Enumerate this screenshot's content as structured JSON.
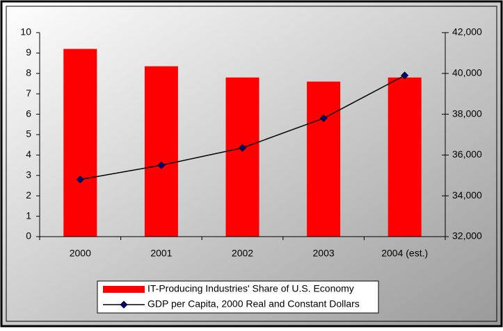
{
  "chart_data": {
    "type": "bar-line",
    "categories": [
      "2000",
      "2001",
      "2002",
      "2003",
      "2004 (est.)"
    ],
    "series": [
      {
        "name": "IT-Producing Industries' Share of U.S. Economy",
        "type": "bar",
        "color": "#ff0000",
        "values": [
          9.2,
          8.35,
          7.8,
          7.6,
          7.8
        ]
      },
      {
        "name": "GDP per Capita, 2000 Real and Constant Dollars",
        "type": "line",
        "axis": "y2",
        "color": "#000000",
        "marker_color": "#000080",
        "values": [
          34800,
          35500,
          36350,
          37800,
          39900
        ]
      }
    ],
    "ylim": [
      0,
      10
    ],
    "yticks": [
      0,
      1,
      2,
      3,
      4,
      5,
      6,
      7,
      8,
      9,
      10
    ],
    "y2lim": [
      32000,
      42000
    ],
    "y2ticks": [
      {
        "value": 32000,
        "label": "32,000"
      },
      {
        "value": 34000,
        "label": "34,000"
      },
      {
        "value": 36000,
        "label": "36,000"
      },
      {
        "value": 38000,
        "label": "38,000"
      },
      {
        "value": 40000,
        "label": "40,000"
      },
      {
        "value": 42000,
        "label": "42,000"
      }
    ],
    "legend": "bottom"
  }
}
